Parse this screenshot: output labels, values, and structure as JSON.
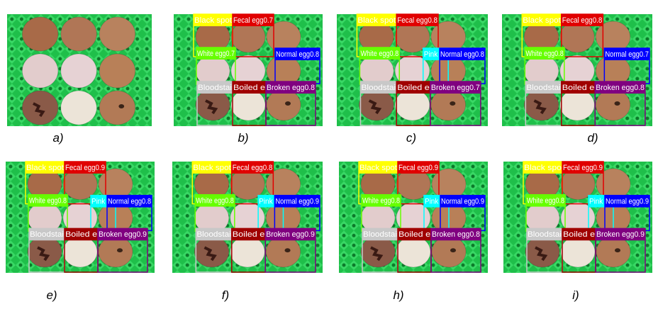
{
  "colors": [
    "#ffff00",
    "#e00000",
    "#66ff00",
    "#00ffff",
    "#0000ff",
    "#c8c8c8",
    "#a00000",
    "#800080"
  ],
  "panels": [
    {
      "caption": "a)"
    },
    {
      "caption": "b)",
      "labels": [
        "Black spot",
        "Fecal egg0.7",
        "White egg0.7",
        null,
        "Normal egg0.8",
        "Bloodstai",
        "Boiled e",
        "Broken egg0.8"
      ]
    },
    {
      "caption": "c)",
      "labels": [
        "Black spot",
        "Fecal egg0.8",
        "White egg0.8",
        "Pink eg",
        "Normal egg0.8",
        "Bloodstai",
        "Boiled e",
        "Broken egg0.7"
      ]
    },
    {
      "caption": "d)",
      "labels": [
        "Black spot",
        "Fecal egg0.8",
        "White egg0.8",
        null,
        "Normal egg0.7",
        "Bloodstai",
        "Boiled e",
        "Broken egg0.8"
      ]
    },
    {
      "caption": "e)",
      "labels": [
        "Black spot",
        "Fecal egg0.9",
        "White egg0.8",
        "Pink eg",
        "Normal egg0.8",
        "Bloodstai",
        "Boiled e",
        "Broken egg0.9"
      ]
    },
    {
      "caption": "f)",
      "labels": [
        "Black spot",
        "Fecal egg0.8",
        "White egg0.8",
        "Pink eg",
        "Normal egg0.9",
        "Bloodstai",
        "Boiled e",
        "Broken egg0.9"
      ]
    },
    {
      "caption": "h)",
      "labels": [
        "Black spot",
        "Fecal egg0.9",
        "White egg0.8",
        "Pink eg",
        "Normal egg0.9",
        "Bloodstai",
        "Boiled e",
        "Broken egg0.8"
      ]
    },
    {
      "caption": "i)",
      "labels": [
        "Black spo",
        "Fecal egg0.9",
        "White egg0.8",
        "Pink eg",
        "Normal egg0.9",
        "Bloodstai",
        "Boiled e",
        "Broken egg0.9"
      ]
    }
  ]
}
